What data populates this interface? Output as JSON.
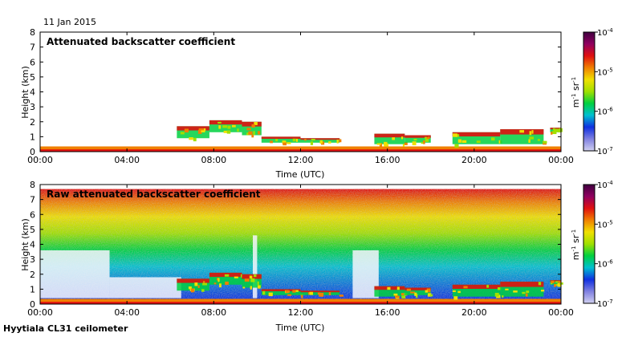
{
  "header": {
    "date": "11 Jan 2015"
  },
  "footer": {
    "instrument": "Hyytiala CL31 ceilometer"
  },
  "colors": {
    "scale": [
      "#d0d0f0",
      "#8080e0",
      "#1030e0",
      "#00c0d0",
      "#00d040",
      "#a0e000",
      "#f0e000",
      "#f08000",
      "#e01010",
      "#900060",
      "#400040"
    ],
    "background": "#ffffff"
  },
  "chart_data": [
    {
      "type": "heatmap",
      "title": "Attenuated backscatter coefficient",
      "xlabel": "Time (UTC)",
      "ylabel": "Height (km)",
      "xticks": [
        "00:00",
        "04:00",
        "08:00",
        "12:00",
        "16:00",
        "20:00",
        "00:00"
      ],
      "yticks": [
        "0",
        "1",
        "2",
        "3",
        "4",
        "5",
        "6",
        "7",
        "8"
      ],
      "xlim": [
        0,
        24
      ],
      "ylim": [
        0,
        8
      ],
      "colorbar": {
        "scale": "log",
        "ticks": [
          "10",
          "10",
          "10",
          "10"
        ],
        "exponents": [
          "-7",
          "-6",
          "-5",
          "-4"
        ],
        "unit_base": [
          "m",
          " sr"
        ],
        "unit_exp": [
          "-1",
          "-1"
        ]
      },
      "cloud_layers": [
        {
          "t_start": 6.3,
          "t_end": 7.8,
          "h_low": 0.9,
          "h_high": 1.7
        },
        {
          "t_start": 7.8,
          "t_end": 9.3,
          "h_low": 1.3,
          "h_high": 2.1
        },
        {
          "t_start": 9.3,
          "t_end": 10.2,
          "h_low": 1.1,
          "h_high": 2.0
        },
        {
          "t_start": 10.2,
          "t_end": 12.0,
          "h_low": 0.6,
          "h_high": 1.0
        },
        {
          "t_start": 12.0,
          "t_end": 13.8,
          "h_low": 0.6,
          "h_high": 0.9
        },
        {
          "t_start": 15.4,
          "t_end": 16.8,
          "h_low": 0.5,
          "h_high": 1.2
        },
        {
          "t_start": 16.8,
          "t_end": 18.0,
          "h_low": 0.6,
          "h_high": 1.1
        },
        {
          "t_start": 19.0,
          "t_end": 21.2,
          "h_low": 0.5,
          "h_high": 1.3
        },
        {
          "t_start": 21.2,
          "t_end": 23.2,
          "h_low": 0.5,
          "h_high": 1.5
        },
        {
          "t_start": 23.5,
          "t_end": 24.0,
          "h_low": 1.3,
          "h_high": 1.6
        }
      ]
    },
    {
      "type": "heatmap",
      "title": "Raw attenuated backscatter coefficient",
      "xlabel": "Time (UTC)",
      "ylabel": "Height (km)",
      "xticks": [
        "00:00",
        "04:00",
        "08:00",
        "12:00",
        "16:00",
        "20:00",
        "00:00"
      ],
      "yticks": [
        "0",
        "1",
        "2",
        "3",
        "4",
        "5",
        "6",
        "7",
        "8"
      ],
      "xlim": [
        0,
        24
      ],
      "ylim": [
        0,
        8
      ],
      "colorbar": {
        "scale": "log",
        "ticks": [
          "10",
          "10",
          "10",
          "10"
        ],
        "exponents": [
          "-7",
          "-6",
          "-5",
          "-4"
        ],
        "unit_base": [
          "m",
          " sr"
        ],
        "unit_exp": [
          "-1",
          "-1"
        ]
      },
      "noise_regions": [
        {
          "t_start": 0.0,
          "t_end": 3.2,
          "h_low": 0.4,
          "h_high": 3.6
        },
        {
          "t_start": 3.2,
          "t_end": 6.5,
          "h_low": 0.4,
          "h_high": 1.8
        },
        {
          "t_start": 9.8,
          "t_end": 10.0,
          "h_low": 0.4,
          "h_high": 4.6
        },
        {
          "t_start": 14.4,
          "t_end": 15.6,
          "h_low": 0.4,
          "h_high": 3.6
        }
      ]
    }
  ]
}
